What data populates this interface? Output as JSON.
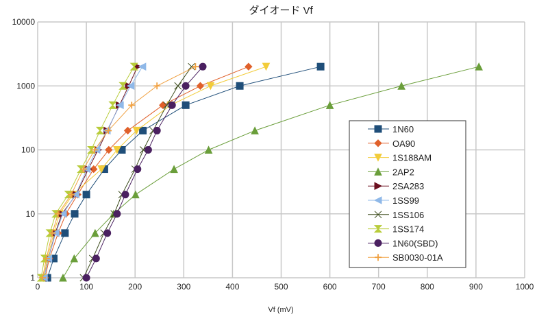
{
  "chart_data": {
    "type": "scatter",
    "title": "ダイオード Vf",
    "xlabel": "Vf (mV)",
    "ylabel": "",
    "xlim": [
      0,
      1000
    ],
    "ylim": [
      1,
      10000
    ],
    "yscale": "log",
    "grid": true,
    "legend_position": "right",
    "x_ticks": [
      "0",
      "100",
      "200",
      "300",
      "400",
      "500",
      "600",
      "700",
      "800",
      "900",
      "1000"
    ],
    "y_ticks": [
      "1",
      "10",
      "100",
      "1000",
      "10000"
    ],
    "y": [
      1,
      2,
      5,
      10,
      20,
      50,
      100,
      200,
      500,
      1000,
      2000
    ],
    "series": [
      {
        "name": "1N60",
        "color": "#1f4e79",
        "marker": "square",
        "x": [
          20,
          33,
          56,
          76,
          100,
          137,
          173,
          216,
          304,
          415,
          581
        ]
      },
      {
        "name": "OA90",
        "color": "#e0602a",
        "marker": "diamond",
        "x": [
          15,
          24,
          42,
          58,
          82,
          115,
          146,
          185,
          257,
          334,
          433
        ]
      },
      {
        "name": "1S188AM",
        "color": "#f2cc3a",
        "marker": "triangle-down",
        "x": [
          12,
          20,
          33,
          45,
          72,
          131,
          163,
          203,
          273,
          355,
          469
        ]
      },
      {
        "name": "2AP2",
        "color": "#6a9e3a",
        "marker": "triangle-up",
        "x": [
          52,
          75,
          118,
          156,
          201,
          280,
          351,
          446,
          600,
          747,
          906
        ]
      },
      {
        "name": "2SA283",
        "color": "#6b0f1f",
        "marker": "triangle-right",
        "x": [
          13,
          22,
          36,
          50,
          79,
          104,
          124,
          143,
          168,
          187,
          205
        ]
      },
      {
        "name": "1SS99",
        "color": "#8fb8e8",
        "marker": "triangle-left",
        "x": [
          13,
          22,
          37,
          52,
          78,
          101,
          121,
          142,
          169,
          191,
          215
        ]
      },
      {
        "name": "1SS106",
        "color": "#3a4a1a",
        "marker": "bowtie",
        "x": [
          94,
          113,
          136,
          157,
          173,
          200,
          217,
          237,
          265,
          288,
          316
        ]
      },
      {
        "name": "1SS174",
        "color": "#b8cc3a",
        "marker": "hourglass",
        "x": [
          7,
          14,
          25,
          37,
          63,
          89,
          110,
          128,
          154,
          175,
          198
        ]
      },
      {
        "name": "1N60(SBD)",
        "color": "#4a2060",
        "marker": "circle",
        "x": [
          100,
          120,
          143,
          163,
          180,
          205,
          227,
          245,
          276,
          304,
          339
        ]
      },
      {
        "name": "SB0030-01A",
        "color": "#f0a040",
        "marker": "plus",
        "x": [
          10,
          18,
          30,
          42,
          69,
          94,
          117,
          145,
          193,
          245,
          324
        ]
      }
    ]
  }
}
